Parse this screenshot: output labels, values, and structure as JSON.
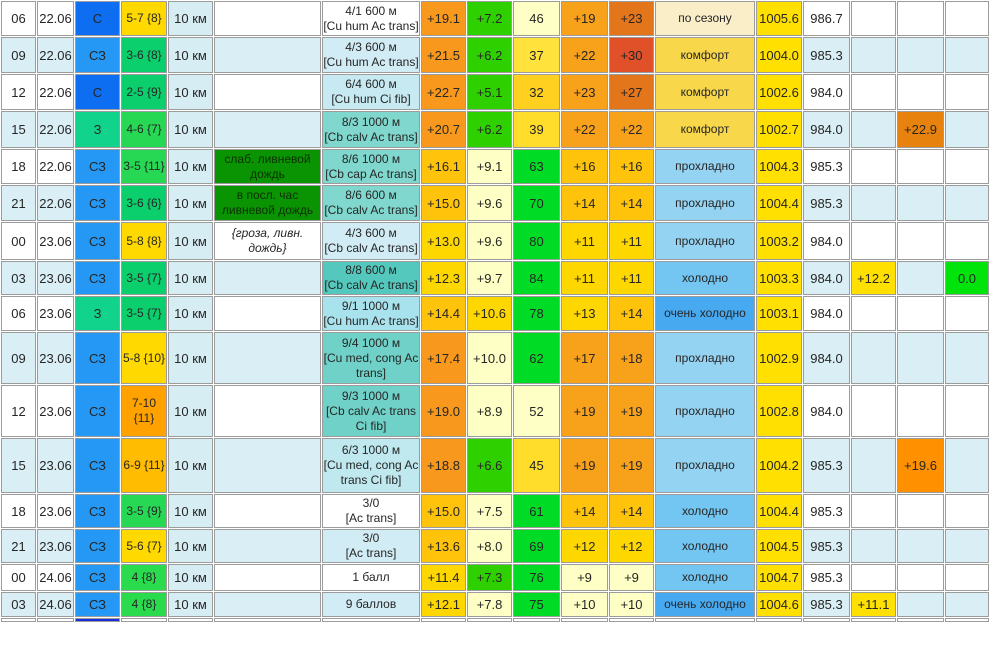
{
  "palette": {
    "alt_row": "#D9EEF5",
    "white": "#FFFFFF",
    "visibility_bg": "#D7EDF4",
    "grid_line": "#9C9C9C",
    "pressure_bg": "#FFE000",
    "wind_north": "#0D6EF2",
    "wind_northwest": "#2598F5",
    "wind_west": "#12D38C",
    "rain_green": "#0A9403",
    "comfort_season": "#FAEEC8",
    "comfort_comfort": "#F8D84A",
    "comfort_cool": "#94D3F2",
    "comfort_cold": "#73C6F2",
    "comfort_very_cold": "#47A9F0"
  },
  "rows": [
    {
      "alt": false,
      "h": 35,
      "time": "06",
      "date": "22.06",
      "dir": {
        "t": "С",
        "bg": "#0D6EF2"
      },
      "speed": {
        "t": "5-7 {8}",
        "bg": "#FFD900"
      },
      "vis": "10 км",
      "phen": null,
      "cloud": {
        "lines": [
          "4/1 600 м",
          "[Cu hum Ac trans]"
        ],
        "bg": "#FFFFFF"
      },
      "temp": {
        "t": "+19.1",
        "bg": "#F8991D"
      },
      "dew": {
        "t": "+7.2",
        "bg": "#2FD000"
      },
      "hum": {
        "t": "46",
        "bg": "#FEFFC4"
      },
      "feel1": {
        "t": "+19",
        "bg": "#F8A11B"
      },
      "feel2": {
        "t": "+23",
        "bg": "#E3761B"
      },
      "comfort": {
        "t": "по сезону",
        "bg": "#FAEEC8"
      },
      "p1": {
        "t": "1005.6",
        "bg": "#FFE000"
      },
      "p2": "986.7",
      "x1": null,
      "x2": null,
      "x3": null
    },
    {
      "alt": true,
      "h": 36,
      "time": "09",
      "date": "22.06",
      "dir": {
        "t": "СЗ",
        "bg": "#2598F5"
      },
      "speed": {
        "t": "3-6 {8}",
        "bg": "#0BCF6C"
      },
      "vis": "10 км",
      "phen": null,
      "cloud": {
        "lines": [
          "4/3 600 м",
          "[Cu hum Ac trans]"
        ],
        "bg": "#D2ECF5"
      },
      "temp": {
        "t": "+21.5",
        "bg": "#F8991D"
      },
      "dew": {
        "t": "+6.2",
        "bg": "#2FD000"
      },
      "hum": {
        "t": "37",
        "bg": "#FFE23C"
      },
      "feel1": {
        "t": "+22",
        "bg": "#F8A11B"
      },
      "feel2": {
        "t": "+30",
        "bg": "#E0512A"
      },
      "comfort": {
        "t": "комфорт",
        "bg": "#F8D84A"
      },
      "p1": {
        "t": "1004.0",
        "bg": "#FFE000"
      },
      "p2": "985.3",
      "x1": null,
      "x2": null,
      "x3": null
    },
    {
      "alt": false,
      "h": 36,
      "time": "12",
      "date": "22.06",
      "dir": {
        "t": "С",
        "bg": "#0D6EF2"
      },
      "speed": {
        "t": "2-5 {9}",
        "bg": "#0BCF6C"
      },
      "vis": "10 км",
      "phen": null,
      "cloud": {
        "lines": [
          "6/4 600 м",
          "[Cu hum Ci fib]"
        ],
        "bg": "#C6E9F2"
      },
      "temp": {
        "t": "+22.7",
        "bg": "#F8991D"
      },
      "dew": {
        "t": "+5.1",
        "bg": "#2FD000"
      },
      "hum": {
        "t": "32",
        "bg": "#FFD020"
      },
      "feel1": {
        "t": "+23",
        "bg": "#F8A11B"
      },
      "feel2": {
        "t": "+27",
        "bg": "#E3761B"
      },
      "comfort": {
        "t": "комфорт",
        "bg": "#F8D84A"
      },
      "p1": {
        "t": "1002.6",
        "bg": "#FFE000"
      },
      "p2": "984.0",
      "x1": null,
      "x2": null,
      "x3": null
    },
    {
      "alt": true,
      "h": 37,
      "time": "15",
      "date": "22.06",
      "dir": {
        "t": "З",
        "bg": "#12D38C"
      },
      "speed": {
        "t": "4-6 {7}",
        "bg": "#27D854"
      },
      "vis": "10 км",
      "phen": null,
      "cloud": {
        "lines": [
          "8/3 1000 м",
          "[Cb calv Ac trans]"
        ],
        "bg": "#7FD7CD"
      },
      "temp": {
        "t": "+20.7",
        "bg": "#F8991D"
      },
      "dew": {
        "t": "+6.2",
        "bg": "#2FD000"
      },
      "hum": {
        "t": "39",
        "bg": "#FFDD2A"
      },
      "feel1": {
        "t": "+22",
        "bg": "#F8A11B"
      },
      "feel2": {
        "t": "+22",
        "bg": "#F8A11B"
      },
      "comfort": {
        "t": "комфорт",
        "bg": "#F8D84A"
      },
      "p1": {
        "t": "1002.7",
        "bg": "#FFE000"
      },
      "p2": "984.0",
      "x1": null,
      "x2": {
        "t": "+22.9",
        "bg": "#E8820E"
      },
      "x3": null
    },
    {
      "alt": false,
      "h": 35,
      "time": "18",
      "date": "22.06",
      "dir": {
        "t": "СЗ",
        "bg": "#2598F5"
      },
      "speed": {
        "t": "3-5 {11}",
        "bg": "#27D854"
      },
      "vis": "10 км",
      "phen": {
        "t": "слаб. ливневой дождь",
        "bg": "#0A9403",
        "fg": "#0A3000"
      },
      "cloud": {
        "lines": [
          "8/6 1000 м",
          "[Cb cap Ac trans]"
        ],
        "bg": "#7FD7CD"
      },
      "temp": {
        "t": "+16.1",
        "bg": "#FFC30B"
      },
      "dew": {
        "t": "+9.1",
        "bg": "#FEFFC4"
      },
      "hum": {
        "t": "63",
        "bg": "#00DC25"
      },
      "feel1": {
        "t": "+16",
        "bg": "#FFC30B"
      },
      "feel2": {
        "t": "+16",
        "bg": "#FFC30B"
      },
      "comfort": {
        "t": "прохладно",
        "bg": "#94D3F2"
      },
      "p1": {
        "t": "1004.3",
        "bg": "#FFE000"
      },
      "p2": "985.3",
      "x1": null,
      "x2": null,
      "x3": null
    },
    {
      "alt": true,
      "h": 36,
      "time": "21",
      "date": "22.06",
      "dir": {
        "t": "СЗ",
        "bg": "#2598F5"
      },
      "speed": {
        "t": "3-6 {6}",
        "bg": "#0BCF6C"
      },
      "vis": "10 км",
      "phen": {
        "t": "в посл. час ливневой дождь",
        "bg": "#0A9403",
        "fg": "#0A3000"
      },
      "cloud": {
        "lines": [
          "8/6 600 м",
          "[Cb calv Ac trans]"
        ],
        "bg": "#7FD7CD"
      },
      "temp": {
        "t": "+15.0",
        "bg": "#FFC30B"
      },
      "dew": {
        "t": "+9.6",
        "bg": "#FEFFC4"
      },
      "hum": {
        "t": "70",
        "bg": "#00DC25"
      },
      "feel1": {
        "t": "+14",
        "bg": "#FFC30B"
      },
      "feel2": {
        "t": "+14",
        "bg": "#FFC30B"
      },
      "comfort": {
        "t": "прохладно",
        "bg": "#94D3F2"
      },
      "p1": {
        "t": "1004.4",
        "bg": "#FFE000"
      },
      "p2": "985.3",
      "x1": null,
      "x2": null,
      "x3": null
    },
    {
      "alt": false,
      "h": 38,
      "time": "00",
      "date": "23.06",
      "dir": {
        "t": "СЗ",
        "bg": "#2598F5"
      },
      "speed": {
        "t": "5-8 {8}",
        "bg": "#FFD900"
      },
      "vis": "10 км",
      "phen": {
        "t": "{гроза, ливн. дождь}",
        "bg": "#FFFFFF",
        "i": true
      },
      "cloud": {
        "lines": [
          "4/3 600 м",
          "[Cb calv Ac trans]"
        ],
        "bg": "#D2ECF5"
      },
      "temp": {
        "t": "+13.0",
        "bg": "#FFD700"
      },
      "dew": {
        "t": "+9.6",
        "bg": "#FEFFC4"
      },
      "hum": {
        "t": "80",
        "bg": "#00DC25"
      },
      "feel1": {
        "t": "+11",
        "bg": "#FFD700"
      },
      "feel2": {
        "t": "+11",
        "bg": "#FFD700"
      },
      "comfort": {
        "t": "прохладно",
        "bg": "#94D3F2"
      },
      "p1": {
        "t": "1003.2",
        "bg": "#FFE000"
      },
      "p2": "984.0",
      "x1": null,
      "x2": null,
      "x3": null
    },
    {
      "alt": true,
      "h": 34,
      "time": "03",
      "date": "23.06",
      "dir": {
        "t": "СЗ",
        "bg": "#2598F5"
      },
      "speed": {
        "t": "3-5 {7}",
        "bg": "#0BCF6C"
      },
      "vis": "10 км",
      "phen": null,
      "cloud": {
        "lines": [
          "8/8 600 м",
          "[Cb calv Ac trans]"
        ],
        "bg": "#55C8BD"
      },
      "temp": {
        "t": "+12.3",
        "bg": "#FFD700"
      },
      "dew": {
        "t": "+9.7",
        "bg": "#FEFFC4"
      },
      "hum": {
        "t": "84",
        "bg": "#00DC25"
      },
      "feel1": {
        "t": "+11",
        "bg": "#FFD700"
      },
      "feel2": {
        "t": "+11",
        "bg": "#FFD700"
      },
      "comfort": {
        "t": "холодно",
        "bg": "#73C6F2"
      },
      "p1": {
        "t": "1003.3",
        "bg": "#FFE000"
      },
      "p2": "984.0",
      "x1": {
        "t": "+12.2",
        "bg": "#FFE000"
      },
      "x2": null,
      "x3": {
        "t": "0.0",
        "bg": "#00E40C"
      }
    },
    {
      "alt": false,
      "h": 35,
      "time": "06",
      "date": "23.06",
      "dir": {
        "t": "З",
        "bg": "#12D38C"
      },
      "speed": {
        "t": "3-5 {7}",
        "bg": "#0BCF6C"
      },
      "vis": "10 км",
      "phen": null,
      "cloud": {
        "lines": [
          "9/1 1000 м",
          "[Cu hum Ac trans]"
        ],
        "bg": "#A8E3ED"
      },
      "temp": {
        "t": "+14.4",
        "bg": "#FFC30B"
      },
      "dew": {
        "t": "+10.6",
        "bg": "#FFD700"
      },
      "hum": {
        "t": "78",
        "bg": "#00DC25"
      },
      "feel1": {
        "t": "+13",
        "bg": "#FFD700"
      },
      "feel2": {
        "t": "+14",
        "bg": "#FFC30B"
      },
      "comfort": {
        "t": "очень холодно",
        "bg": "#47A9F0"
      },
      "p1": {
        "t": "1003.1",
        "bg": "#FFE000"
      },
      "p2": "984.0",
      "x1": null,
      "x2": null,
      "x3": null
    },
    {
      "alt": true,
      "h": 52,
      "time": "09",
      "date": "23.06",
      "dir": {
        "t": "СЗ",
        "bg": "#2598F5"
      },
      "speed": {
        "t": "5-8 {10}",
        "bg": "#FFD900"
      },
      "vis": "10 км",
      "phen": null,
      "cloud": {
        "lines": [
          "9/4 1000 м",
          "[Cu med, cong Ac",
          "trans]"
        ],
        "bg": "#6FD1C7"
      },
      "temp": {
        "t": "+17.4",
        "bg": "#F8991D"
      },
      "dew": {
        "t": "+10.0",
        "bg": "#FEFFC4"
      },
      "hum": {
        "t": "62",
        "bg": "#00DC25"
      },
      "feel1": {
        "t": "+17",
        "bg": "#F8A11B"
      },
      "feel2": {
        "t": "+18",
        "bg": "#F8A11B"
      },
      "comfort": {
        "t": "прохладно",
        "bg": "#94D3F2"
      },
      "p1": {
        "t": "1002.9",
        "bg": "#FFE000"
      },
      "p2": "984.0",
      "x1": null,
      "x2": null,
      "x3": null
    },
    {
      "alt": false,
      "h": 52,
      "time": "12",
      "date": "23.06",
      "dir": {
        "t": "СЗ",
        "bg": "#2598F5"
      },
      "speed": {
        "t": "7-10 {11}",
        "bg": "#FFA200"
      },
      "vis": "10 км",
      "phen": null,
      "cloud": {
        "lines": [
          "9/3 1000 м",
          "[Cb calv Ac trans",
          "Ci fib]"
        ],
        "bg": "#6FD1C7"
      },
      "temp": {
        "t": "+19.0",
        "bg": "#F8991D"
      },
      "dew": {
        "t": "+8.9",
        "bg": "#FEFFC4"
      },
      "hum": {
        "t": "52",
        "bg": "#FEFFC4"
      },
      "feel1": {
        "t": "+19",
        "bg": "#F8A11B"
      },
      "feel2": {
        "t": "+19",
        "bg": "#F8A11B"
      },
      "comfort": {
        "t": "прохладно",
        "bg": "#94D3F2"
      },
      "p1": {
        "t": "1002.8",
        "bg": "#FFE000"
      },
      "p2": "984.0",
      "x1": null,
      "x2": null,
      "x3": null
    },
    {
      "alt": true,
      "h": 55,
      "time": "15",
      "date": "23.06",
      "dir": {
        "t": "СЗ",
        "bg": "#2598F5"
      },
      "speed": {
        "t": "6-9 {11}",
        "bg": "#FFBC00"
      },
      "vis": "10 км",
      "phen": null,
      "cloud": {
        "lines": [
          "6/3 1000 м",
          "[Cu med, cong Ac",
          "trans Ci fib]"
        ],
        "bg": "#BFE8EF"
      },
      "temp": {
        "t": "+18.8",
        "bg": "#F8991D"
      },
      "dew": {
        "t": "+6.6",
        "bg": "#2FD000"
      },
      "hum": {
        "t": "45",
        "bg": "#FFDD2A"
      },
      "feel1": {
        "t": "+19",
        "bg": "#F8A11B"
      },
      "feel2": {
        "t": "+19",
        "bg": "#F8A11B"
      },
      "comfort": {
        "t": "прохладно",
        "bg": "#94D3F2"
      },
      "p1": {
        "t": "1004.2",
        "bg": "#FFE000"
      },
      "p2": "985.3",
      "x1": null,
      "x2": {
        "t": "+19.6",
        "bg": "#FF9000"
      },
      "x3": null
    },
    {
      "alt": false,
      "h": 34,
      "time": "18",
      "date": "23.06",
      "dir": {
        "t": "СЗ",
        "bg": "#2598F5"
      },
      "speed": {
        "t": "3-5 {9}",
        "bg": "#27D854"
      },
      "vis": "10 км",
      "phen": null,
      "cloud": {
        "lines": [
          "3/0",
          "[Ac trans]"
        ],
        "bg": "#FFFFFF"
      },
      "temp": {
        "t": "+15.0",
        "bg": "#FFC30B"
      },
      "dew": {
        "t": "+7.5",
        "bg": "#FEFFC4"
      },
      "hum": {
        "t": "61",
        "bg": "#00DC25"
      },
      "feel1": {
        "t": "+14",
        "bg": "#FFC30B"
      },
      "feel2": {
        "t": "+14",
        "bg": "#FFC30B"
      },
      "comfort": {
        "t": "холодно",
        "bg": "#73C6F2"
      },
      "p1": {
        "t": "1004.4",
        "bg": "#FFE000"
      },
      "p2": "985.3",
      "x1": null,
      "x2": null,
      "x3": null
    },
    {
      "alt": true,
      "h": 34,
      "time": "21",
      "date": "23.06",
      "dir": {
        "t": "СЗ",
        "bg": "#2598F5"
      },
      "speed": {
        "t": "5-6 {7}",
        "bg": "#FFD900"
      },
      "vis": "10 км",
      "phen": null,
      "cloud": {
        "lines": [
          "3/0",
          "[Ac trans]"
        ],
        "bg": "#D2ECF5"
      },
      "temp": {
        "t": "+13.6",
        "bg": "#FFC30B"
      },
      "dew": {
        "t": "+8.0",
        "bg": "#FEFFC4"
      },
      "hum": {
        "t": "69",
        "bg": "#00DC25"
      },
      "feel1": {
        "t": "+12",
        "bg": "#FFD700"
      },
      "feel2": {
        "t": "+12",
        "bg": "#FFD700"
      },
      "comfort": {
        "t": "холодно",
        "bg": "#73C6F2"
      },
      "p1": {
        "t": "1004.5",
        "bg": "#FFE000"
      },
      "p2": "985.3",
      "x1": null,
      "x2": null,
      "x3": null
    },
    {
      "alt": false,
      "h": 27,
      "time": "00",
      "date": "24.06",
      "dir": {
        "t": "СЗ",
        "bg": "#2598F5"
      },
      "speed": {
        "t": "4 {8}",
        "bg": "#2BDB4E"
      },
      "vis": "10 км",
      "phen": null,
      "cloud": {
        "lines": [
          "1 балл"
        ],
        "bg": "#FFFFFF"
      },
      "temp": {
        "t": "+11.4",
        "bg": "#FFD700"
      },
      "dew": {
        "t": "+7.3",
        "bg": "#2FD000"
      },
      "hum": {
        "t": "76",
        "bg": "#00DC25"
      },
      "feel1": {
        "t": "+9",
        "bg": "#FEFFC4"
      },
      "feel2": {
        "t": "+9",
        "bg": "#FEFFC4"
      },
      "comfort": {
        "t": "холодно",
        "bg": "#73C6F2"
      },
      "p1": {
        "t": "1004.7",
        "bg": "#FFE000"
      },
      "p2": "985.3",
      "x1": null,
      "x2": null,
      "x3": null
    },
    {
      "alt": true,
      "h": 25,
      "time": "03",
      "date": "24.06",
      "dir": {
        "t": "СЗ",
        "bg": "#2598F5"
      },
      "speed": {
        "t": "4 {8}",
        "bg": "#2BDB4E"
      },
      "vis": "10 км",
      "phen": null,
      "cloud": {
        "lines": [
          "9 баллов"
        ],
        "bg": "#D2ECF5"
      },
      "temp": {
        "t": "+12.1",
        "bg": "#FFD700"
      },
      "dew": {
        "t": "+7.8",
        "bg": "#FEFFC4"
      },
      "hum": {
        "t": "75",
        "bg": "#00DC25"
      },
      "feel1": {
        "t": "+10",
        "bg": "#FEFFC4"
      },
      "feel2": {
        "t": "+10",
        "bg": "#FEFFC4"
      },
      "comfort": {
        "t": "очень холодно",
        "bg": "#47A9F0"
      },
      "p1": {
        "t": "1004.6",
        "bg": "#FFE000"
      },
      "p2": "985.3",
      "x1": {
        "t": "+11.1",
        "bg": "#FFE000"
      },
      "x2": null,
      "x3": null
    },
    {
      "alt": false,
      "h": 4,
      "partial": true,
      "time": "",
      "date": "",
      "dir": {
        "t": "",
        "bg": "#1B2FD6"
      },
      "speed": null,
      "vis": null,
      "phen": null,
      "cloud": null,
      "temp": null,
      "dew": null,
      "hum": null,
      "feel1": null,
      "feel2": null,
      "comfort": null,
      "p1": null,
      "p2": null,
      "x1": null,
      "x2": null,
      "x3": null
    }
  ]
}
